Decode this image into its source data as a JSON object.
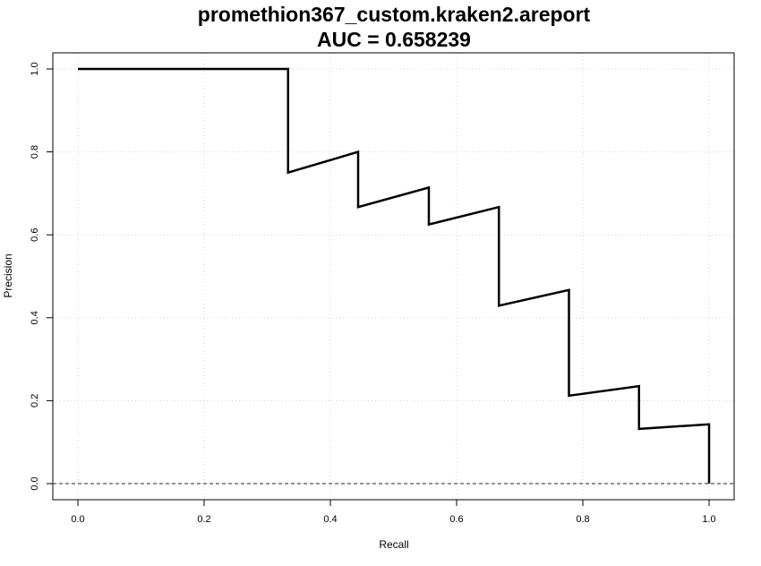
{
  "chart_data": {
    "type": "line",
    "title": "promethion367_custom.kraken2.areport",
    "subtitle": "AUC = 0.658239",
    "xlabel": "Recall",
    "ylabel": "Precision",
    "xlim": [
      0,
      1
    ],
    "ylim": [
      0,
      1
    ],
    "grid": true,
    "x_ticks": [
      "0.0",
      "0.2",
      "0.4",
      "0.6",
      "0.8",
      "1.0"
    ],
    "y_ticks": [
      "0.0",
      "0.2",
      "0.4",
      "0.6",
      "0.8",
      "1.0"
    ],
    "series": [
      {
        "x": [
          0,
          0.333,
          0.333,
          0.444,
          0.444,
          0.556,
          0.556,
          0.667,
          0.667,
          0.778,
          0.778,
          0.889,
          0.889,
          1.0,
          1.0
        ],
        "y": [
          1.0,
          1.0,
          0.75,
          0.8,
          0.667,
          0.714,
          0.625,
          0.667,
          0.429,
          0.467,
          0.212,
          0.235,
          0.132,
          0.143,
          0.0
        ],
        "color": "#000000"
      }
    ],
    "baseline": {
      "y": 0.0,
      "style": "dashed",
      "color": "#555555"
    }
  }
}
